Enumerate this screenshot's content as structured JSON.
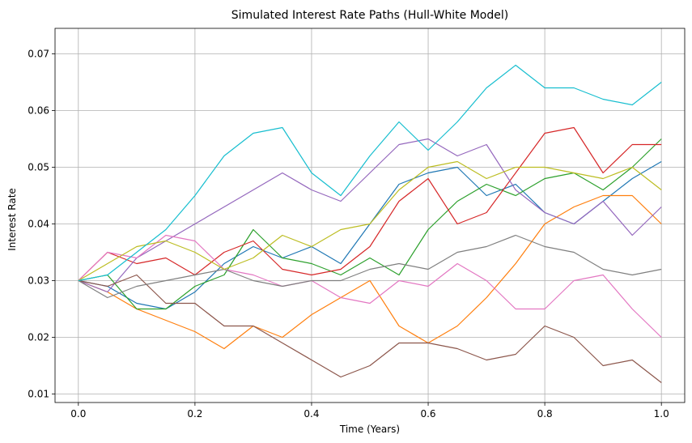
{
  "chart_data": {
    "type": "line",
    "title": "Simulated Interest Rate Paths (Hull-White Model)",
    "xlabel": "Time (Years)",
    "ylabel": "Interest Rate",
    "xlim": [
      -0.04,
      1.04
    ],
    "ylim": [
      0.0085,
      0.0745
    ],
    "xticks": [
      0.0,
      0.2,
      0.4,
      0.6,
      0.8,
      1.0
    ],
    "xtick_labels": [
      "0.0",
      "0.2",
      "0.4",
      "0.6",
      "0.8",
      "1.0"
    ],
    "yticks": [
      0.01,
      0.02,
      0.03,
      0.04,
      0.05,
      0.06,
      0.07
    ],
    "ytick_labels": [
      "0.01",
      "0.02",
      "0.03",
      "0.04",
      "0.05",
      "0.06",
      "0.07"
    ],
    "grid": true,
    "legend": "none",
    "series": [
      {
        "color": "#1f77b4",
        "x": [
          0,
          0.05,
          0.1,
          0.15,
          0.2,
          0.25,
          0.3,
          0.35,
          0.4,
          0.45,
          0.5,
          0.55,
          0.6,
          0.65,
          0.7,
          0.75,
          0.8,
          0.85,
          0.9,
          0.95,
          1.0
        ],
        "values": [
          0.03,
          0.029,
          0.026,
          0.025,
          0.028,
          0.033,
          0.036,
          0.034,
          0.036,
          0.033,
          0.04,
          0.047,
          0.049,
          0.05,
          0.045,
          0.047,
          0.042,
          0.04,
          0.044,
          0.048,
          0.051
        ]
      },
      {
        "color": "#ff7f0e",
        "x": [
          0,
          0.05,
          0.1,
          0.15,
          0.2,
          0.25,
          0.3,
          0.35,
          0.4,
          0.45,
          0.5,
          0.55,
          0.6,
          0.65,
          0.7,
          0.75,
          0.8,
          0.85,
          0.9,
          0.95,
          1.0
        ],
        "values": [
          0.03,
          0.028,
          0.025,
          0.023,
          0.021,
          0.018,
          0.022,
          0.02,
          0.024,
          0.027,
          0.03,
          0.022,
          0.019,
          0.022,
          0.027,
          0.033,
          0.04,
          0.043,
          0.045,
          0.045,
          0.04
        ]
      },
      {
        "color": "#2ca02c",
        "x": [
          0,
          0.05,
          0.1,
          0.15,
          0.2,
          0.25,
          0.3,
          0.35,
          0.4,
          0.45,
          0.5,
          0.55,
          0.6,
          0.65,
          0.7,
          0.75,
          0.8,
          0.85,
          0.9,
          0.95,
          1.0
        ],
        "values": [
          0.03,
          0.031,
          0.025,
          0.025,
          0.029,
          0.031,
          0.039,
          0.034,
          0.033,
          0.031,
          0.034,
          0.031,
          0.039,
          0.044,
          0.047,
          0.045,
          0.048,
          0.049,
          0.046,
          0.05,
          0.055
        ]
      },
      {
        "color": "#d62728",
        "x": [
          0,
          0.05,
          0.1,
          0.15,
          0.2,
          0.25,
          0.3,
          0.35,
          0.4,
          0.45,
          0.5,
          0.55,
          0.6,
          0.65,
          0.7,
          0.75,
          0.8,
          0.85,
          0.9,
          0.95,
          1.0
        ],
        "values": [
          0.03,
          0.035,
          0.033,
          0.034,
          0.031,
          0.035,
          0.037,
          0.032,
          0.031,
          0.032,
          0.036,
          0.044,
          0.048,
          0.04,
          0.042,
          0.049,
          0.056,
          0.057,
          0.049,
          0.054,
          0.054
        ]
      },
      {
        "color": "#9467bd",
        "x": [
          0,
          0.05,
          0.1,
          0.15,
          0.2,
          0.25,
          0.3,
          0.35,
          0.4,
          0.45,
          0.5,
          0.55,
          0.6,
          0.65,
          0.7,
          0.75,
          0.8,
          0.85,
          0.9,
          0.95,
          1.0
        ],
        "values": [
          0.03,
          0.028,
          0.034,
          0.037,
          0.04,
          0.043,
          0.046,
          0.049,
          0.046,
          0.044,
          0.049,
          0.054,
          0.055,
          0.052,
          0.054,
          0.046,
          0.042,
          0.04,
          0.044,
          0.038,
          0.043
        ]
      },
      {
        "color": "#8c564b",
        "x": [
          0,
          0.05,
          0.1,
          0.15,
          0.2,
          0.25,
          0.3,
          0.35,
          0.4,
          0.45,
          0.5,
          0.55,
          0.6,
          0.65,
          0.7,
          0.75,
          0.8,
          0.85,
          0.9,
          0.95,
          1.0
        ],
        "values": [
          0.03,
          0.029,
          0.031,
          0.026,
          0.026,
          0.022,
          0.022,
          0.019,
          0.016,
          0.013,
          0.015,
          0.019,
          0.019,
          0.018,
          0.016,
          0.017,
          0.022,
          0.02,
          0.015,
          0.016,
          0.012
        ]
      },
      {
        "color": "#e377c2",
        "x": [
          0,
          0.05,
          0.1,
          0.15,
          0.2,
          0.25,
          0.3,
          0.35,
          0.4,
          0.45,
          0.5,
          0.55,
          0.6,
          0.65,
          0.7,
          0.75,
          0.8,
          0.85,
          0.9,
          0.95,
          1.0
        ],
        "values": [
          0.03,
          0.035,
          0.034,
          0.038,
          0.037,
          0.032,
          0.031,
          0.029,
          0.03,
          0.027,
          0.026,
          0.03,
          0.029,
          0.033,
          0.03,
          0.025,
          0.025,
          0.03,
          0.031,
          0.025,
          0.02
        ]
      },
      {
        "color": "#7f7f7f",
        "x": [
          0,
          0.05,
          0.1,
          0.15,
          0.2,
          0.25,
          0.3,
          0.35,
          0.4,
          0.45,
          0.5,
          0.55,
          0.6,
          0.65,
          0.7,
          0.75,
          0.8,
          0.85,
          0.9,
          0.95,
          1.0
        ],
        "values": [
          0.03,
          0.027,
          0.029,
          0.03,
          0.031,
          0.032,
          0.03,
          0.029,
          0.03,
          0.03,
          0.032,
          0.033,
          0.032,
          0.035,
          0.036,
          0.038,
          0.036,
          0.035,
          0.032,
          0.031,
          0.032
        ]
      },
      {
        "color": "#bcbd22",
        "x": [
          0,
          0.05,
          0.1,
          0.15,
          0.2,
          0.25,
          0.3,
          0.35,
          0.4,
          0.45,
          0.5,
          0.55,
          0.6,
          0.65,
          0.7,
          0.75,
          0.8,
          0.85,
          0.9,
          0.95,
          1.0
        ],
        "values": [
          0.03,
          0.033,
          0.036,
          0.037,
          0.035,
          0.032,
          0.034,
          0.038,
          0.036,
          0.039,
          0.04,
          0.046,
          0.05,
          0.051,
          0.048,
          0.05,
          0.05,
          0.049,
          0.048,
          0.05,
          0.046
        ]
      },
      {
        "color": "#17becf",
        "x": [
          0,
          0.05,
          0.1,
          0.15,
          0.2,
          0.25,
          0.3,
          0.35,
          0.4,
          0.45,
          0.5,
          0.55,
          0.6,
          0.65,
          0.7,
          0.75,
          0.8,
          0.85,
          0.9,
          0.95,
          1.0
        ],
        "values": [
          0.03,
          0.031,
          0.035,
          0.039,
          0.045,
          0.052,
          0.056,
          0.057,
          0.049,
          0.045,
          0.052,
          0.058,
          0.053,
          0.058,
          0.064,
          0.068,
          0.064,
          0.064,
          0.062,
          0.061,
          0.065
        ]
      }
    ]
  }
}
